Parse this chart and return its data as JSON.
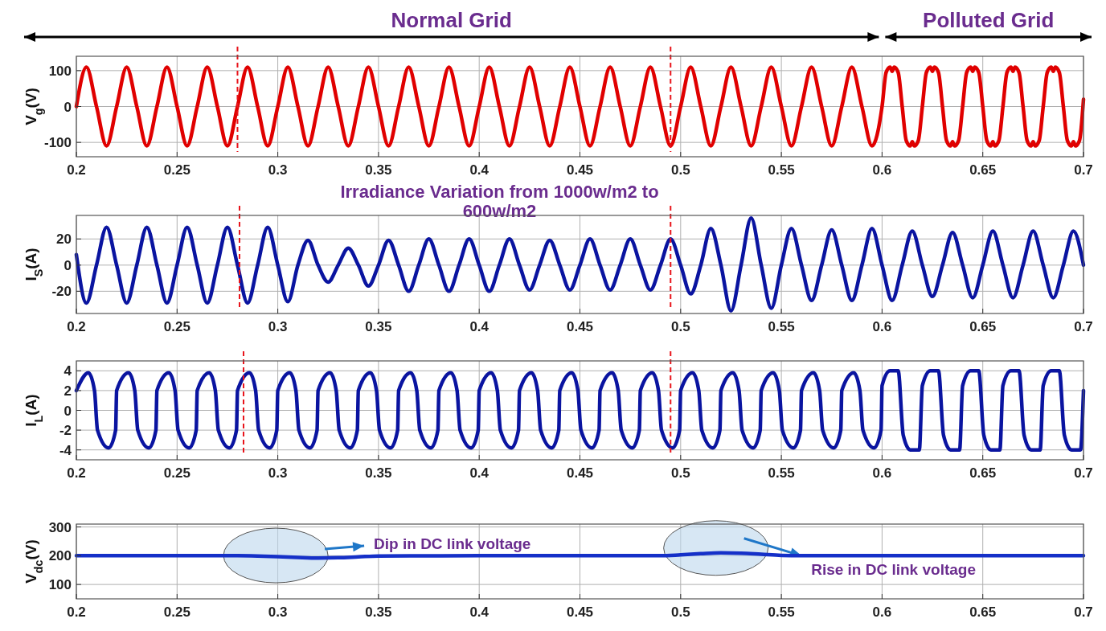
{
  "chart_data": [
    {
      "type": "line",
      "ylabel": "V$_{g}$(V)",
      "xlim": [
        0.2,
        0.7
      ],
      "xticks": [
        0.2,
        0.25,
        0.3,
        0.35,
        0.4,
        0.45,
        0.5,
        0.55,
        0.6,
        0.65,
        0.7
      ],
      "ylim": [
        -140,
        140
      ],
      "yticks": [
        -100,
        0,
        100
      ],
      "grid": true,
      "annotations": [
        "Normal Grid",
        "Polluted Grid"
      ],
      "ref_lines": [
        {
          "axis": "x",
          "value": 0.28,
          "color": "#e8141b",
          "line_style": "dashed"
        },
        {
          "axis": "x",
          "value": 0.495,
          "color": "#e8141b",
          "line_style": "dashed"
        }
      ],
      "series": [
        {
          "color": "#e00000",
          "x": [
            0.2,
            0.205,
            0.21,
            0.215,
            0.22,
            0.225,
            0.23,
            0.235,
            0.24,
            0.245,
            0.25,
            0.255,
            0.26,
            0.265,
            0.27,
            0.275,
            0.28,
            0.285,
            0.29,
            0.295,
            0.3,
            0.305,
            0.31,
            0.315,
            0.32,
            0.325,
            0.33,
            0.335,
            0.34,
            0.345,
            0.35,
            0.355,
            0.36,
            0.365,
            0.37,
            0.375,
            0.38,
            0.385,
            0.39,
            0.395,
            0.4,
            0.405,
            0.41,
            0.415,
            0.42,
            0.425,
            0.43,
            0.435,
            0.44,
            0.445,
            0.45,
            0.455,
            0.46,
            0.465,
            0.47,
            0.475,
            0.48,
            0.485,
            0.49,
            0.495,
            0.5,
            0.505,
            0.51,
            0.515,
            0.52,
            0.525,
            0.53,
            0.535,
            0.54,
            0.545,
            0.55,
            0.555,
            0.56,
            0.565,
            0.57,
            0.575,
            0.58,
            0.585,
            0.59,
            0.595,
            0.6,
            0.602,
            0.604,
            0.605,
            0.606,
            0.608,
            0.61,
            0.612,
            0.614,
            0.615,
            0.616,
            0.618,
            0.62,
            0.622,
            0.624,
            0.625,
            0.626,
            0.628,
            0.63,
            0.632,
            0.634,
            0.635,
            0.636,
            0.638,
            0.64,
            0.642,
            0.644,
            0.645,
            0.646,
            0.648,
            0.65,
            0.652,
            0.654,
            0.655,
            0.656,
            0.658,
            0.66,
            0.662,
            0.664,
            0.665,
            0.666,
            0.668,
            0.67,
            0.672,
            0.674,
            0.675,
            0.676,
            0.678,
            0.68,
            0.682,
            0.684,
            0.685,
            0.686,
            0.688,
            0.69,
            0.692,
            0.694,
            0.695,
            0.696,
            0.698,
            0.7
          ],
          "values": [
            0,
            110,
            0,
            -110,
            0,
            110,
            0,
            -110,
            0,
            110,
            0,
            -110,
            0,
            110,
            0,
            -110,
            0,
            110,
            0,
            -110,
            0,
            110,
            0,
            -110,
            0,
            110,
            0,
            -110,
            0,
            110,
            0,
            -110,
            0,
            110,
            0,
            -110,
            0,
            110,
            0,
            -110,
            0,
            110,
            0,
            -110,
            0,
            110,
            0,
            -110,
            0,
            110,
            0,
            -110,
            0,
            110,
            0,
            -110,
            0,
            110,
            0,
            -110,
            0,
            110,
            0,
            -110,
            0,
            110,
            0,
            -110,
            0,
            110,
            0,
            -110,
            0,
            110,
            0,
            -110,
            0,
            110,
            0,
            -110,
            0,
            95,
            110,
            98,
            110,
            95,
            0,
            -95,
            -110,
            -98,
            -110,
            -95,
            0,
            95,
            110,
            98,
            110,
            95,
            0,
            -95,
            -110,
            -98,
            -110,
            -95,
            0,
            95,
            110,
            98,
            110,
            95,
            0,
            -95,
            -110,
            -98,
            -110,
            -95,
            0,
            95,
            110,
            98,
            110,
            95,
            0,
            -95,
            -110,
            -98,
            -110,
            -95,
            0,
            95,
            110,
            98,
            110,
            95,
            0,
            -95,
            -110,
            -98,
            -110,
            -95,
            20
          ]
        }
      ]
    },
    {
      "type": "line",
      "ylabel": "I$_{S}$(A)",
      "xlim": [
        0.2,
        0.7
      ],
      "xticks": [
        0.2,
        0.25,
        0.3,
        0.35,
        0.4,
        0.45,
        0.5,
        0.55,
        0.6,
        0.65,
        0.7
      ],
      "ylim": [
        -37,
        38
      ],
      "yticks": [
        -20,
        0,
        20
      ],
      "grid": true,
      "annotations": [
        "Irradiance Variation from 1000w/m2 to 600w/m2"
      ],
      "ref_lines": [
        {
          "axis": "x",
          "value": 0.281,
          "color": "#e8141b",
          "line_style": "dashed"
        },
        {
          "axis": "x",
          "value": 0.495,
          "color": "#e8141b",
          "line_style": "dashed"
        }
      ],
      "series": [
        {
          "color": "#0a14a0",
          "x": [
            0.2,
            0.205,
            0.21,
            0.215,
            0.22,
            0.225,
            0.23,
            0.235,
            0.24,
            0.245,
            0.25,
            0.255,
            0.26,
            0.265,
            0.27,
            0.275,
            0.28,
            0.285,
            0.29,
            0.295,
            0.3,
            0.305,
            0.31,
            0.315,
            0.32,
            0.325,
            0.33,
            0.335,
            0.34,
            0.345,
            0.35,
            0.355,
            0.36,
            0.365,
            0.37,
            0.375,
            0.38,
            0.385,
            0.39,
            0.395,
            0.4,
            0.405,
            0.41,
            0.415,
            0.42,
            0.425,
            0.43,
            0.435,
            0.44,
            0.445,
            0.45,
            0.455,
            0.46,
            0.465,
            0.47,
            0.475,
            0.48,
            0.485,
            0.49,
            0.495,
            0.5,
            0.505,
            0.51,
            0.515,
            0.52,
            0.525,
            0.53,
            0.535,
            0.54,
            0.545,
            0.55,
            0.555,
            0.56,
            0.565,
            0.57,
            0.575,
            0.58,
            0.585,
            0.59,
            0.595,
            0.6,
            0.605,
            0.61,
            0.615,
            0.62,
            0.625,
            0.63,
            0.635,
            0.64,
            0.645,
            0.65,
            0.655,
            0.66,
            0.665,
            0.67,
            0.675,
            0.68,
            0.685,
            0.69,
            0.695,
            0.7
          ],
          "values": [
            8,
            -29,
            0,
            29,
            0,
            -29,
            0,
            29,
            0,
            -29,
            0,
            29,
            0,
            -29,
            0,
            29,
            0,
            -29,
            0,
            29,
            0,
            -28,
            0,
            19,
            0,
            -13,
            0,
            13,
            0,
            -16,
            0,
            19,
            0,
            -20,
            0,
            20,
            0,
            -20,
            0,
            20,
            0,
            -20,
            0,
            20,
            0,
            -19,
            0,
            19,
            0,
            -19,
            0,
            20,
            0,
            -19,
            0,
            20,
            0,
            -19,
            0,
            20,
            0,
            -22,
            0,
            28,
            0,
            -35,
            0,
            36,
            0,
            -33,
            0,
            28,
            0,
            -27,
            0,
            27,
            0,
            -27,
            0,
            28,
            0,
            -27,
            0,
            26,
            0,
            -24,
            0,
            25,
            0,
            -25,
            0,
            26,
            0,
            -25,
            0,
            26,
            0,
            -25,
            0,
            26,
            0
          ]
        }
      ]
    },
    {
      "type": "line",
      "ylabel": "I$_{L}$(A)",
      "xlim": [
        0.2,
        0.7
      ],
      "xticks": [
        0.2,
        0.25,
        0.3,
        0.35,
        0.4,
        0.45,
        0.5,
        0.55,
        0.6,
        0.65,
        0.7
      ],
      "ylim": [
        -5,
        5
      ],
      "yticks": [
        -4,
        -2,
        0,
        2,
        4
      ],
      "grid": true,
      "ref_lines": [
        {
          "axis": "x",
          "value": 0.283,
          "color": "#e8141b",
          "line_style": "dashed"
        },
        {
          "axis": "x",
          "value": 0.495,
          "color": "#e8141b",
          "line_style": "dashed"
        }
      ],
      "series": [
        {
          "color": "#0a14a0",
          "x": [
            0.2,
            0.206,
            0.209,
            0.2105,
            0.216,
            0.2195,
            0.22,
            0.226,
            0.229,
            0.2305,
            0.236,
            0.2395,
            0.24,
            0.246,
            0.249,
            0.2505,
            0.256,
            0.2595,
            0.26,
            0.266,
            0.269,
            0.2705,
            0.276,
            0.2795,
            0.28,
            0.286,
            0.289,
            0.2905,
            0.296,
            0.2995,
            0.3,
            0.306,
            0.309,
            0.3105,
            0.316,
            0.3195,
            0.32,
            0.326,
            0.329,
            0.3305,
            0.336,
            0.3395,
            0.34,
            0.346,
            0.349,
            0.3505,
            0.356,
            0.3595,
            0.36,
            0.366,
            0.369,
            0.3705,
            0.376,
            0.3795,
            0.38,
            0.386,
            0.389,
            0.3905,
            0.396,
            0.3995,
            0.4,
            0.406,
            0.409,
            0.4105,
            0.416,
            0.4195,
            0.42,
            0.426,
            0.429,
            0.4305,
            0.436,
            0.4395,
            0.44,
            0.446,
            0.449,
            0.4505,
            0.456,
            0.4595,
            0.46,
            0.466,
            0.469,
            0.4705,
            0.476,
            0.4795,
            0.48,
            0.486,
            0.489,
            0.4905,
            0.496,
            0.4995,
            0.5,
            0.506,
            0.509,
            0.5105,
            0.516,
            0.5195,
            0.52,
            0.526,
            0.529,
            0.5305,
            0.536,
            0.5395,
            0.54,
            0.546,
            0.549,
            0.5505,
            0.556,
            0.5595,
            0.56,
            0.566,
            0.569,
            0.5705,
            0.576,
            0.5795,
            0.58,
            0.586,
            0.589,
            0.5905,
            0.596,
            0.5995,
            0.6,
            0.604,
            0.608,
            0.6105,
            0.614,
            0.6185,
            0.62,
            0.624,
            0.628,
            0.6305,
            0.634,
            0.6385,
            0.64,
            0.644,
            0.648,
            0.6505,
            0.654,
            0.6585,
            0.66,
            0.664,
            0.668,
            0.6705,
            0.674,
            0.6785,
            0.68,
            0.684,
            0.688,
            0.6905,
            0.694,
            0.6985,
            0.7
          ],
          "values": [
            2,
            3.8,
            2,
            -2,
            -3.8,
            -2,
            2,
            3.8,
            2,
            -2,
            -3.8,
            -2,
            2,
            3.8,
            2,
            -2,
            -3.8,
            -2,
            2,
            3.8,
            2,
            -2,
            -3.8,
            -2,
            2,
            3.8,
            2,
            -2,
            -3.8,
            -2,
            2,
            3.8,
            2,
            -2,
            -3.8,
            -2,
            2,
            3.8,
            2,
            -2,
            -3.8,
            -2,
            2,
            3.8,
            2,
            -2,
            -3.8,
            -2,
            2,
            3.8,
            2,
            -2,
            -3.8,
            -2,
            2,
            3.8,
            2,
            -2,
            -3.8,
            -2,
            2,
            3.8,
            2,
            -2,
            -3.8,
            -2,
            2,
            3.8,
            2,
            -2,
            -3.8,
            -2,
            2,
            3.8,
            2,
            -2,
            -3.8,
            -2,
            2,
            3.8,
            2,
            -2,
            -3.8,
            -2,
            2,
            3.8,
            2,
            -2,
            -3.8,
            -2,
            2,
            3.8,
            2,
            -2,
            -3.8,
            -2,
            2,
            3.8,
            2,
            -2,
            -3.8,
            -2,
            2,
            3.8,
            2,
            -2,
            -3.8,
            -2,
            2,
            3.8,
            2,
            -2,
            -3.8,
            -2,
            2,
            3.8,
            2,
            -2,
            -3.8,
            -2,
            2.5,
            4,
            4,
            -2.5,
            -4,
            -4,
            2.5,
            4,
            4,
            -2.5,
            -4,
            -4,
            2.5,
            4,
            4,
            -2.5,
            -4,
            -4,
            2.5,
            4,
            4,
            -2.5,
            -4,
            -4,
            2.5,
            4,
            4,
            -2.5,
            -4,
            -4,
            2
          ]
        }
      ]
    },
    {
      "type": "line",
      "ylabel": "V$_{dc}$(V)",
      "xlim": [
        0.2,
        0.7
      ],
      "xticks": [
        0.2,
        0.25,
        0.3,
        0.35,
        0.4,
        0.45,
        0.5,
        0.55,
        0.6,
        0.65,
        0.7
      ],
      "ylim": [
        50,
        310
      ],
      "yticks": [
        100,
        200,
        300
      ],
      "grid": true,
      "annotations": [
        "Dip in DC link voltage",
        {
          "text": "Rise in DC link voltage",
          "x": 0.56,
          "y": 200
        }
      ],
      "series": [
        {
          "color": "#1530c8",
          "x": [
            0.2,
            0.25,
            0.28,
            0.29,
            0.3,
            0.31,
            0.32,
            0.33,
            0.34,
            0.35,
            0.4,
            0.45,
            0.49,
            0.5,
            0.51,
            0.52,
            0.53,
            0.54,
            0.55,
            0.56,
            0.6,
            0.65,
            0.7
          ],
          "values": [
            200,
            200,
            200,
            199,
            197,
            194,
            192,
            193,
            196,
            199,
            200,
            200,
            200,
            203,
            207,
            210,
            209,
            205,
            201,
            200,
            200,
            200,
            200
          ]
        }
      ]
    }
  ]
}
